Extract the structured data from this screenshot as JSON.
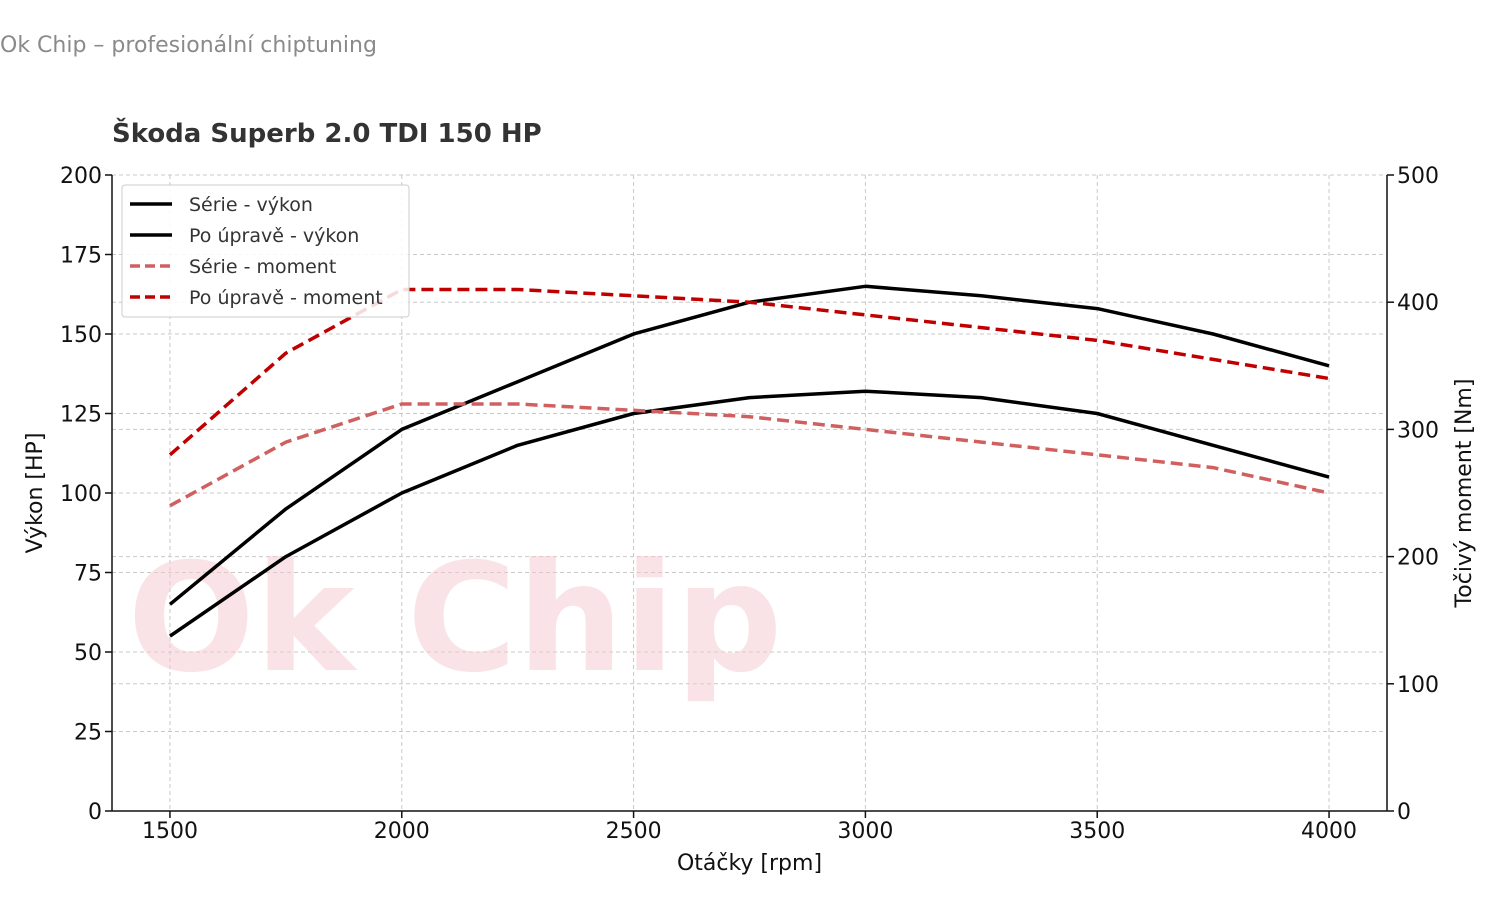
{
  "brand": "Ok Chip – profesionální chiptuning",
  "chart_data": {
    "type": "line",
    "title": "Škoda Superb 2.0 TDI 150 HP",
    "xlabel": "Otáčky [rpm]",
    "ylabel": "Výkon [HP]",
    "y2label": "Točivý moment [Nm]",
    "watermark": "Ok Chip",
    "xlim": [
      1375,
      4125
    ],
    "ylim": [
      0,
      200
    ],
    "y2lim": [
      0,
      500
    ],
    "xticks": [
      1500,
      2000,
      2500,
      3000,
      3500,
      4000
    ],
    "yticks": [
      0,
      25,
      50,
      75,
      100,
      125,
      150,
      175,
      200
    ],
    "y2ticks": [
      0,
      100,
      200,
      300,
      400,
      500
    ],
    "grid": true,
    "legend_position": "top-left",
    "x": [
      1500,
      1750,
      2000,
      2250,
      2500,
      2750,
      3000,
      3250,
      3500,
      3750,
      4000
    ],
    "series": [
      {
        "name": "Série - výkon",
        "axis": "left",
        "color": "#000000",
        "dash": "solid",
        "values": [
          55,
          80,
          100,
          115,
          125,
          130,
          132,
          130,
          125,
          115,
          105
        ]
      },
      {
        "name": "Po úpravě - výkon",
        "axis": "left",
        "color": "#000000",
        "dash": "solid",
        "values": [
          65,
          95,
          120,
          135,
          150,
          160,
          165,
          162,
          158,
          150,
          140
        ]
      },
      {
        "name": "Série - moment",
        "axis": "right",
        "color": "#d06060",
        "dash": "dashed",
        "values": [
          240,
          290,
          320,
          320,
          315,
          310,
          300,
          290,
          280,
          270,
          250
        ]
      },
      {
        "name": "Po úpravě - moment",
        "axis": "right",
        "color": "#c00000",
        "dash": "dashed",
        "values": [
          280,
          360,
          410,
          410,
          405,
          400,
          390,
          380,
          370,
          355,
          340
        ]
      }
    ]
  }
}
